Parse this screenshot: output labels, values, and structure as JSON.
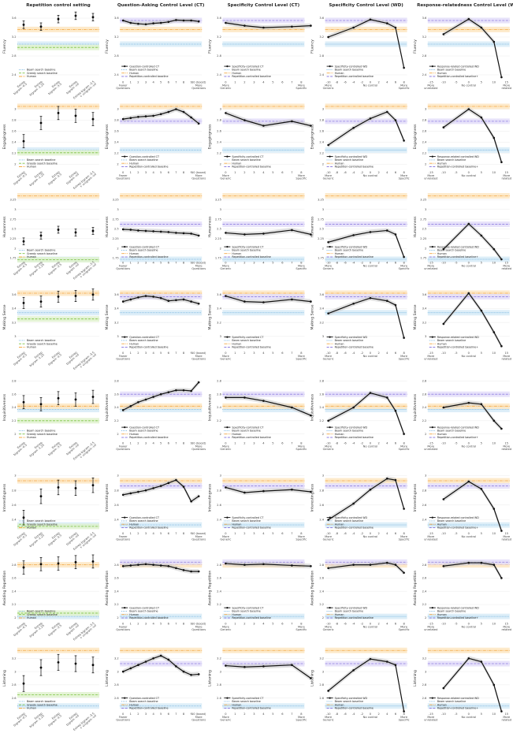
{
  "colors": {
    "human": "#f4a742",
    "human_band": "#fde6c2",
    "beam": "#4f9ed6",
    "beam_band": "#d7ebf7",
    "greedy": "#7cc242",
    "greedy_band": "#e1f2cf",
    "rep": "#8f7fe0",
    "rep_band": "#e3ddf9",
    "model": "#111111",
    "ci": "#c9c9c9",
    "grid": "#e6e6e6"
  },
  "chart_data": {
    "type": "line",
    "columns": [
      {
        "title": "Repetition control setting",
        "kind": "errorbar",
        "x_ticks": [
          "Extrep\nbigram -0.5",
          "Extrep\nbigram -1.25",
          "Extrep\nbigram -3.5",
          "Extrep\nbigram -inf",
          "Extrep bigram -3.5\n+ unigram -inf"
        ],
        "legend": [
          "Beam search baseline",
          "Greedy search baseline",
          "Human"
        ]
      },
      {
        "title": "Question-Asking Control Level (CT)",
        "kind": "line",
        "x": [
          0,
          1,
          2,
          3,
          4,
          5,
          6,
          7,
          8,
          9,
          10
        ],
        "x_ticks": [
          "0\nFewer\nQuestions",
          "1",
          "2",
          "3",
          "4",
          "5",
          "6",
          "7",
          "8",
          "9",
          "10 (boost)\nMore\nQuestions"
        ],
        "legend": [
          "Question-controlled CT",
          "Beam search baseline",
          "Human",
          "Repetition-controlled baseline"
        ]
      },
      {
        "title": "Specificity Control Level (CT)",
        "kind": "line",
        "x": [
          0,
          2,
          4,
          7,
          9
        ],
        "x_ticks": [
          "0\nMore\nGeneric",
          "1",
          "2",
          "3",
          "4",
          "5",
          "6",
          "7",
          "8\nMore\nSpecific"
        ],
        "legend": [
          "Specificity-controlled CT",
          "Beam search baseline",
          "Human",
          "Repetition-controlled baseline"
        ]
      },
      {
        "title": "Specificity Control Level (WD)",
        "kind": "line",
        "x": [
          -10,
          -4,
          0,
          4,
          6,
          8
        ],
        "x_ticks": [
          "-10\nMore\nGeneric",
          "-8",
          "-6",
          "-4",
          "-2",
          "0\nNo control",
          "2",
          "4",
          "6",
          "8\nMore\nSpecific"
        ],
        "legend": [
          "Specificity-controlled WD",
          "Beam search baseline",
          "Human",
          "Repetition-controlled baseline"
        ]
      },
      {
        "title": "Response-relatedness Control Level (WD)",
        "kind": "line",
        "x": [
          -10,
          0,
          5,
          10,
          13
        ],
        "x_ticks": [
          "-15\nMore\nunrelated",
          "-10",
          "-5",
          "0\nNo control",
          "5",
          "10",
          "15\nMore\nrelated"
        ],
        "legend": [
          "Response-related controlled WD",
          "Beam search baseline",
          "Human",
          "Repetition-controlled baseline+"
        ]
      }
    ],
    "rows": [
      {
        "ylabel": "Fluency",
        "yticks": [
          2.4,
          2.8,
          3.2,
          3.6
        ],
        "ylim": [
          2.3,
          3.7
        ],
        "human": 3.36,
        "beam": 3.05,
        "greedy": 2.98,
        "rep": 3.55,
        "rep_values": [
          3.46,
          3.42,
          3.58,
          3.65,
          3.62
        ],
        "rep_errors": [
          0.08,
          0.08,
          0.08,
          0.08,
          0.08
        ],
        "series": [
          [
            3.55,
            3.5,
            3.48,
            3.47,
            3.49,
            3.5,
            3.52,
            3.56,
            3.55,
            3.55,
            3.53
          ],
          [
            3.5,
            3.44,
            3.4,
            3.42,
            3.44
          ],
          [
            3.2,
            3.4,
            3.57,
            3.49,
            3.4,
            2.55
          ],
          [
            3.26,
            3.58,
            3.4,
            3.1,
            2.35
          ]
        ]
      },
      {
        "ylabel": "Engagingness",
        "yticks": [
          2.0,
          2.2,
          2.4,
          2.6,
          2.8,
          3.0
        ],
        "ylim": [
          1.9,
          3.1
        ],
        "human": 3.05,
        "beam": 2.26,
        "greedy": 2.21,
        "rep": 2.78,
        "rep_values": [
          2.42,
          2.75,
          2.93,
          2.88,
          2.82
        ],
        "rep_errors": [
          0.12,
          0.12,
          0.12,
          0.12,
          0.12
        ],
        "series": [
          [
            2.82,
            2.84,
            2.86,
            2.87,
            2.88,
            2.91,
            2.95,
            3.0,
            2.95,
            2.85,
            2.74
          ],
          [
            2.93,
            2.8,
            2.7,
            2.78,
            2.7
          ],
          [
            2.35,
            2.66,
            2.83,
            2.95,
            2.8,
            2.43
          ],
          [
            2.67,
            3.0,
            2.85,
            2.48,
            2.04
          ]
        ]
      },
      {
        "ylabel": "Humanness",
        "yticks": [
          1.75,
          2.0,
          2.25,
          2.5,
          2.75,
          3.0,
          3.25
        ],
        "ylim": [
          1.7,
          3.4
        ],
        "human": 3.35,
        "beam": 1.72,
        "greedy": 1.71,
        "rep": 2.62,
        "rep_values": [
          2.18,
          2.33,
          2.48,
          2.41,
          2.45
        ],
        "rep_errors": [
          0.09,
          0.09,
          0.09,
          0.09,
          0.09
        ],
        "series": [
          [
            2.49,
            2.48,
            2.46,
            2.45,
            2.44,
            2.43,
            2.42,
            2.4,
            2.39,
            2.38,
            2.33
          ],
          [
            2.4,
            2.36,
            2.38,
            2.47,
            2.36
          ],
          [
            2.16,
            2.34,
            2.42,
            2.46,
            2.36,
            1.78
          ],
          [
            1.98,
            2.63,
            2.33,
            1.98,
            1.72
          ]
        ]
      },
      {
        "ylabel": "Making Sense",
        "yticks": [
          3.0,
          3.2,
          3.4,
          3.6
        ],
        "ylim": [
          2.8,
          3.75
        ],
        "human": 3.62,
        "beam": 3.34,
        "greedy": 3.25,
        "rep": 3.57,
        "rep_values": [
          3.48,
          3.5,
          3.57,
          3.58,
          3.6
        ],
        "rep_errors": [
          0.08,
          0.08,
          0.08,
          0.08,
          0.08
        ],
        "series": [
          [
            3.5,
            3.53,
            3.56,
            3.58,
            3.57,
            3.55,
            3.51,
            3.52,
            3.53,
            3.5,
            3.47
          ],
          [
            3.58,
            3.5,
            3.49,
            3.53,
            3.5
          ],
          [
            3.33,
            3.47,
            3.55,
            3.51,
            3.45,
            2.98
          ],
          [
            3.18,
            3.62,
            3.37,
            3.06,
            2.86
          ]
        ]
      },
      {
        "ylabel": "Inquisitiveness",
        "yticks": [
          2.0,
          2.2,
          2.4,
          2.6,
          2.8
        ],
        "ylim": [
          1.9,
          2.9
        ],
        "human": 2.42,
        "beam": 2.37,
        "greedy": 2.2,
        "rep": 2.6,
        "rep_values": [
          2.48,
          2.45,
          2.54,
          2.52,
          2.56
        ],
        "rep_errors": [
          0.1,
          0.1,
          0.1,
          0.1,
          0.1
        ],
        "series": [
          [
            2.36,
            2.42,
            2.48,
            2.52,
            2.56,
            2.6,
            2.63,
            2.66,
            2.66,
            2.65,
            2.78
          ],
          [
            2.55,
            2.55,
            2.5,
            2.4,
            2.28
          ],
          [
            2.2,
            2.4,
            2.62,
            2.55,
            2.35,
            2.0
          ],
          [
            2.4,
            2.47,
            2.45,
            2.2,
            2.08
          ]
        ]
      },
      {
        "ylabel": "Interestingness",
        "yticks": [
          2.4,
          2.6,
          2.8,
          3.0
        ],
        "ylim": [
          2.25,
          3.15
        ],
        "human": 2.93,
        "beam": 2.33,
        "greedy": 2.31,
        "rep": 2.86,
        "rep_values": [
          2.43,
          2.72,
          2.84,
          2.83,
          2.87
        ],
        "rep_errors": [
          0.1,
          0.1,
          0.1,
          0.1,
          0.1
        ],
        "series": [
          [
            2.74,
            2.76,
            2.78,
            2.8,
            2.83,
            2.86,
            2.9,
            2.94,
            2.85,
            2.65,
            2.72
          ],
          [
            2.84,
            2.77,
            2.79,
            2.81,
            2.78
          ],
          [
            2.4,
            2.62,
            2.81,
            2.96,
            2.94,
            2.55
          ],
          [
            2.68,
            2.92,
            2.82,
            2.55,
            2.25
          ]
        ]
      },
      {
        "ylabel": "Avoiding Repetition",
        "yticks": [
          2.0,
          2.2,
          2.4,
          2.6,
          2.8
        ],
        "ylim": [
          1.95,
          2.95
        ],
        "human": 2.8,
        "beam": 2.02,
        "greedy": 2.07,
        "rep": 2.84,
        "rep_values": [
          2.76,
          2.81,
          2.82,
          2.84,
          2.85
        ],
        "rep_errors": [
          0.1,
          0.1,
          0.1,
          0.1,
          0.1
        ],
        "series": [
          [
            2.78,
            2.79,
            2.8,
            2.81,
            2.8,
            2.79,
            2.78,
            2.75,
            2.72,
            2.7,
            2.7
          ],
          [
            2.82,
            2.8,
            2.81,
            2.79,
            2.78
          ],
          [
            2.75,
            2.8,
            2.8,
            2.83,
            2.8,
            2.68
          ],
          [
            2.78,
            2.83,
            2.83,
            2.8,
            2.6
          ]
        ]
      },
      {
        "ylabel": "Listening",
        "yticks": [
          2.6,
          2.8,
          3.0,
          3.2
        ],
        "ylim": [
          2.4,
          3.4
        ],
        "human": 3.32,
        "beam": 2.48,
        "greedy": 2.65,
        "rep": 3.12,
        "rep_values": [
          2.82,
          3.06,
          3.14,
          3.12,
          3.1
        ],
        "rep_errors": [
          0.12,
          0.12,
          0.12,
          0.12,
          0.12
        ],
        "series": [
          [
            3.0,
            3.05,
            3.1,
            3.15,
            3.2,
            3.24,
            3.18,
            3.08,
            3.0,
            2.95,
            2.96
          ],
          [
            3.09,
            3.07,
            3.08,
            3.1,
            2.9
          ],
          [
            2.71,
            3.02,
            3.19,
            3.15,
            3.1,
            2.4
          ],
          [
            2.75,
            3.2,
            3.15,
            2.8,
            2.4
          ]
        ]
      }
    ]
  }
}
